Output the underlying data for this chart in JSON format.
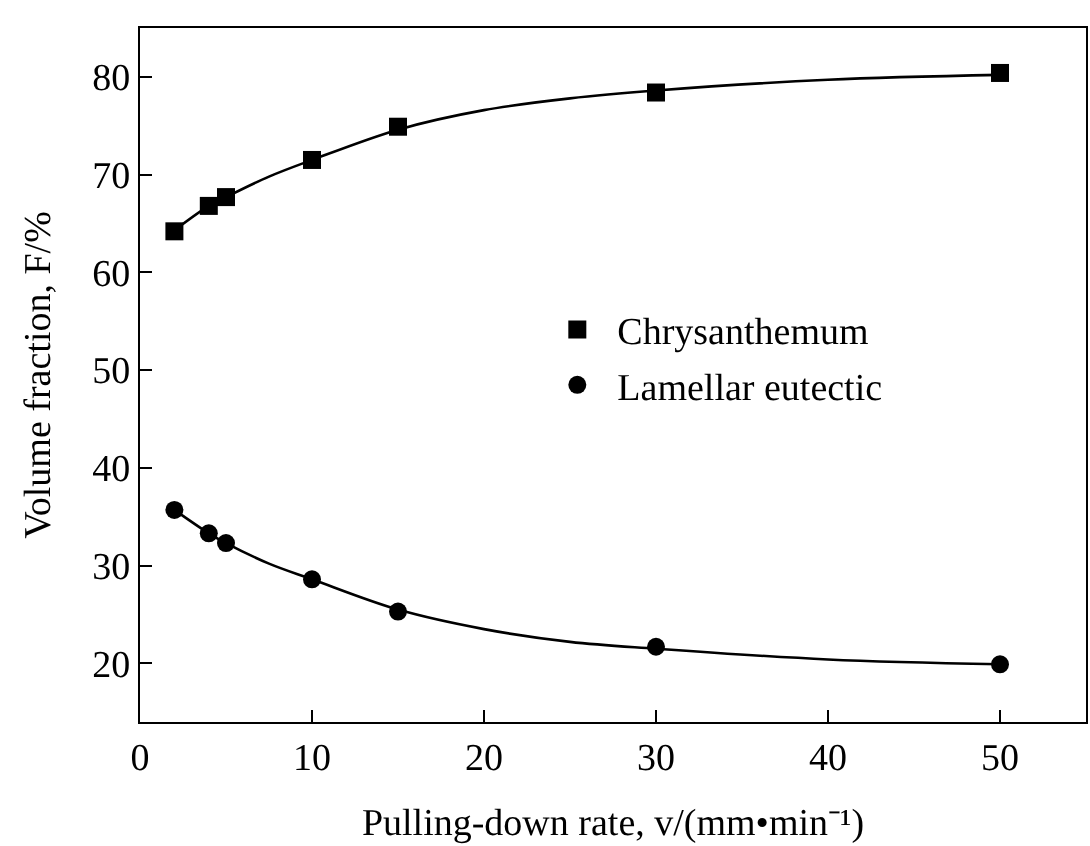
{
  "chart_data": {
    "type": "scatter",
    "xlabel": "Pulling-down rate, v/(mm•min⁻¹)",
    "ylabel": "Volume fraction, F/%",
    "xlim": [
      0,
      55
    ],
    "xticks": [
      0,
      10,
      20,
      30,
      40,
      50
    ],
    "ylim": [
      14,
      85
    ],
    "yticks": [
      20,
      30,
      40,
      50,
      60,
      70,
      80
    ],
    "legend": "right",
    "series": [
      {
        "name": "Chrysanthemum",
        "color": "#000000",
        "marker": "square",
        "x": [
          2,
          4,
          5,
          10,
          15,
          30,
          50
        ],
        "values": [
          64.2,
          66.8,
          67.7,
          71.5,
          74.9,
          78.4,
          80.4
        ]
      },
      {
        "name": "Lamellar eutectic",
        "color": "#000000",
        "marker": "circle",
        "x": [
          2,
          4,
          5,
          10,
          15,
          30,
          50
        ],
        "values": [
          35.7,
          33.3,
          32.3,
          28.6,
          25.3,
          21.7,
          19.9
        ]
      },
      {
        "type": "line",
        "color": "#000000",
        "marker": "none",
        "line_style": "solid",
        "x": [
          2,
          4,
          5,
          7.5,
          10,
          15,
          20,
          25,
          30,
          40,
          50
        ],
        "values": [
          64.3,
          66.8,
          67.7,
          69.8,
          71.5,
          74.6,
          76.6,
          77.8,
          78.6,
          79.7,
          80.2
        ]
      },
      {
        "type": "line",
        "color": "#000000",
        "marker": "none",
        "line_style": "solid",
        "x": [
          2,
          4,
          5,
          7.5,
          10,
          15,
          20,
          25,
          30,
          40,
          50
        ],
        "values": [
          35.7,
          33.3,
          32.3,
          30.2,
          28.6,
          25.5,
          23.5,
          22.2,
          21.5,
          20.4,
          19.9
        ]
      }
    ]
  }
}
